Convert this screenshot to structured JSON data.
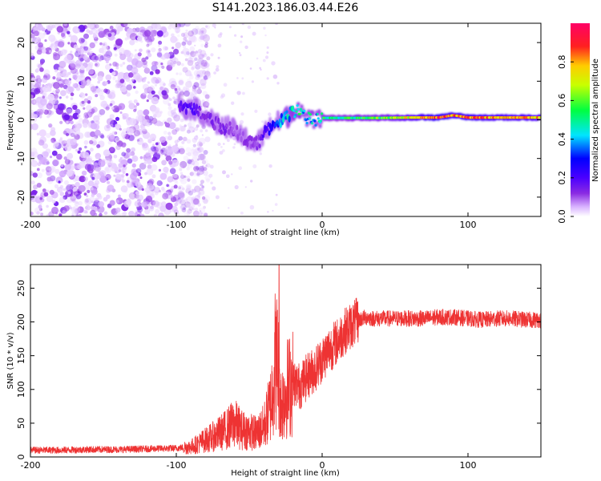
{
  "title": "S141.2023.186.03.44.E26",
  "chart_data": [
    {
      "type": "heatmap",
      "title": "S141.2023.186.03.44.E26",
      "xlabel": "Height of straight line (km)",
      "ylabel": "Frequency (Hz)",
      "xlim": [
        -200,
        150
      ],
      "ylim": [
        -25,
        25
      ],
      "xticks": [
        -200,
        -100,
        0,
        100
      ],
      "yticks": [
        -20,
        -10,
        0,
        10,
        20
      ],
      "colorbar": {
        "label": "Normalized spectral amplitude",
        "range": [
          0.0,
          1.0
        ],
        "ticks": [
          0.0,
          0.2,
          0.4,
          0.6,
          0.8
        ],
        "tick_labels": [
          "0.0",
          "0.2",
          "0.4",
          "0.6",
          "0.8"
        ],
        "colormap": [
          "#ffffff",
          "#d9b3ff",
          "#8a2be2",
          "#4b00ff",
          "#0000ff",
          "#00e5ff",
          "#00ff40",
          "#c8ff00",
          "#ffcc00",
          "#ff2020",
          "#ff0066"
        ]
      },
      "ridge": {
        "x": [
          -98,
          -92,
          -88,
          -84,
          -80,
          -76,
          -72,
          -68,
          -64,
          -60,
          -56,
          -52,
          -48,
          -44,
          -40,
          -36,
          -32,
          -28,
          -24,
          -20,
          -16,
          -12,
          -8,
          -4,
          0,
          10,
          20,
          40,
          60,
          80,
          90,
          100,
          120,
          150
        ],
        "freq": [
          4,
          3,
          3,
          2,
          1,
          0,
          -1,
          -2,
          -2,
          -3,
          -4,
          -5,
          -6,
          -6,
          -4,
          -2,
          -1,
          0,
          1,
          2,
          3,
          1,
          0,
          0,
          0.5,
          0.5,
          0.5,
          0.5,
          0.6,
          0.6,
          1.2,
          0.6,
          0.6,
          0.6
        ],
        "amplitude": [
          0.25,
          0.3,
          0.3,
          0.25,
          0.2,
          0.25,
          0.2,
          0.25,
          0.2,
          0.2,
          0.15,
          0.2,
          0.2,
          0.2,
          0.3,
          0.35,
          0.4,
          0.5,
          0.5,
          0.55,
          0.6,
          0.5,
          0.55,
          0.5,
          0.6,
          0.55,
          0.6,
          0.65,
          0.8,
          0.95,
          0.9,
          0.9,
          0.85,
          0.85
        ]
      },
      "noise_region": {
        "x": [
          -200,
          -90
        ],
        "amplitude_range": [
          0.05,
          0.18
        ]
      }
    },
    {
      "type": "line",
      "xlabel": "Height of straight line (km)",
      "ylabel": "SNR (10 * v/v)",
      "xlim": [
        -200,
        150
      ],
      "ylim": [
        0,
        285
      ],
      "xticks": [
        -200,
        -100,
        0,
        100
      ],
      "yticks": [
        0,
        50,
        100,
        150,
        200,
        250
      ],
      "color": "#ee3333",
      "series": [
        {
          "name": "SNR",
          "x": [
            -200,
            -180,
            -160,
            -140,
            -120,
            -100,
            -90,
            -85,
            -80,
            -75,
            -70,
            -65,
            -60,
            -55,
            -50,
            -45,
            -40,
            -35,
            -32,
            -30,
            -28,
            -25,
            -20,
            -15,
            -10,
            -5,
            0,
            5,
            10,
            15,
            20,
            25,
            30,
            35,
            40,
            50,
            60,
            70,
            80,
            90,
            100,
            110,
            120,
            130,
            140,
            150
          ],
          "y": [
            10,
            10,
            11,
            11,
            12,
            13,
            15,
            20,
            25,
            30,
            35,
            42,
            50,
            40,
            38,
            35,
            45,
            80,
            150,
            130,
            75,
            100,
            110,
            105,
            120,
            130,
            145,
            160,
            170,
            185,
            195,
            203,
            207,
            205,
            205,
            205,
            205,
            205,
            207,
            207,
            205,
            203,
            205,
            205,
            203,
            203
          ]
        }
      ],
      "spike": {
        "x": -29.5,
        "y": 285
      }
    }
  ]
}
